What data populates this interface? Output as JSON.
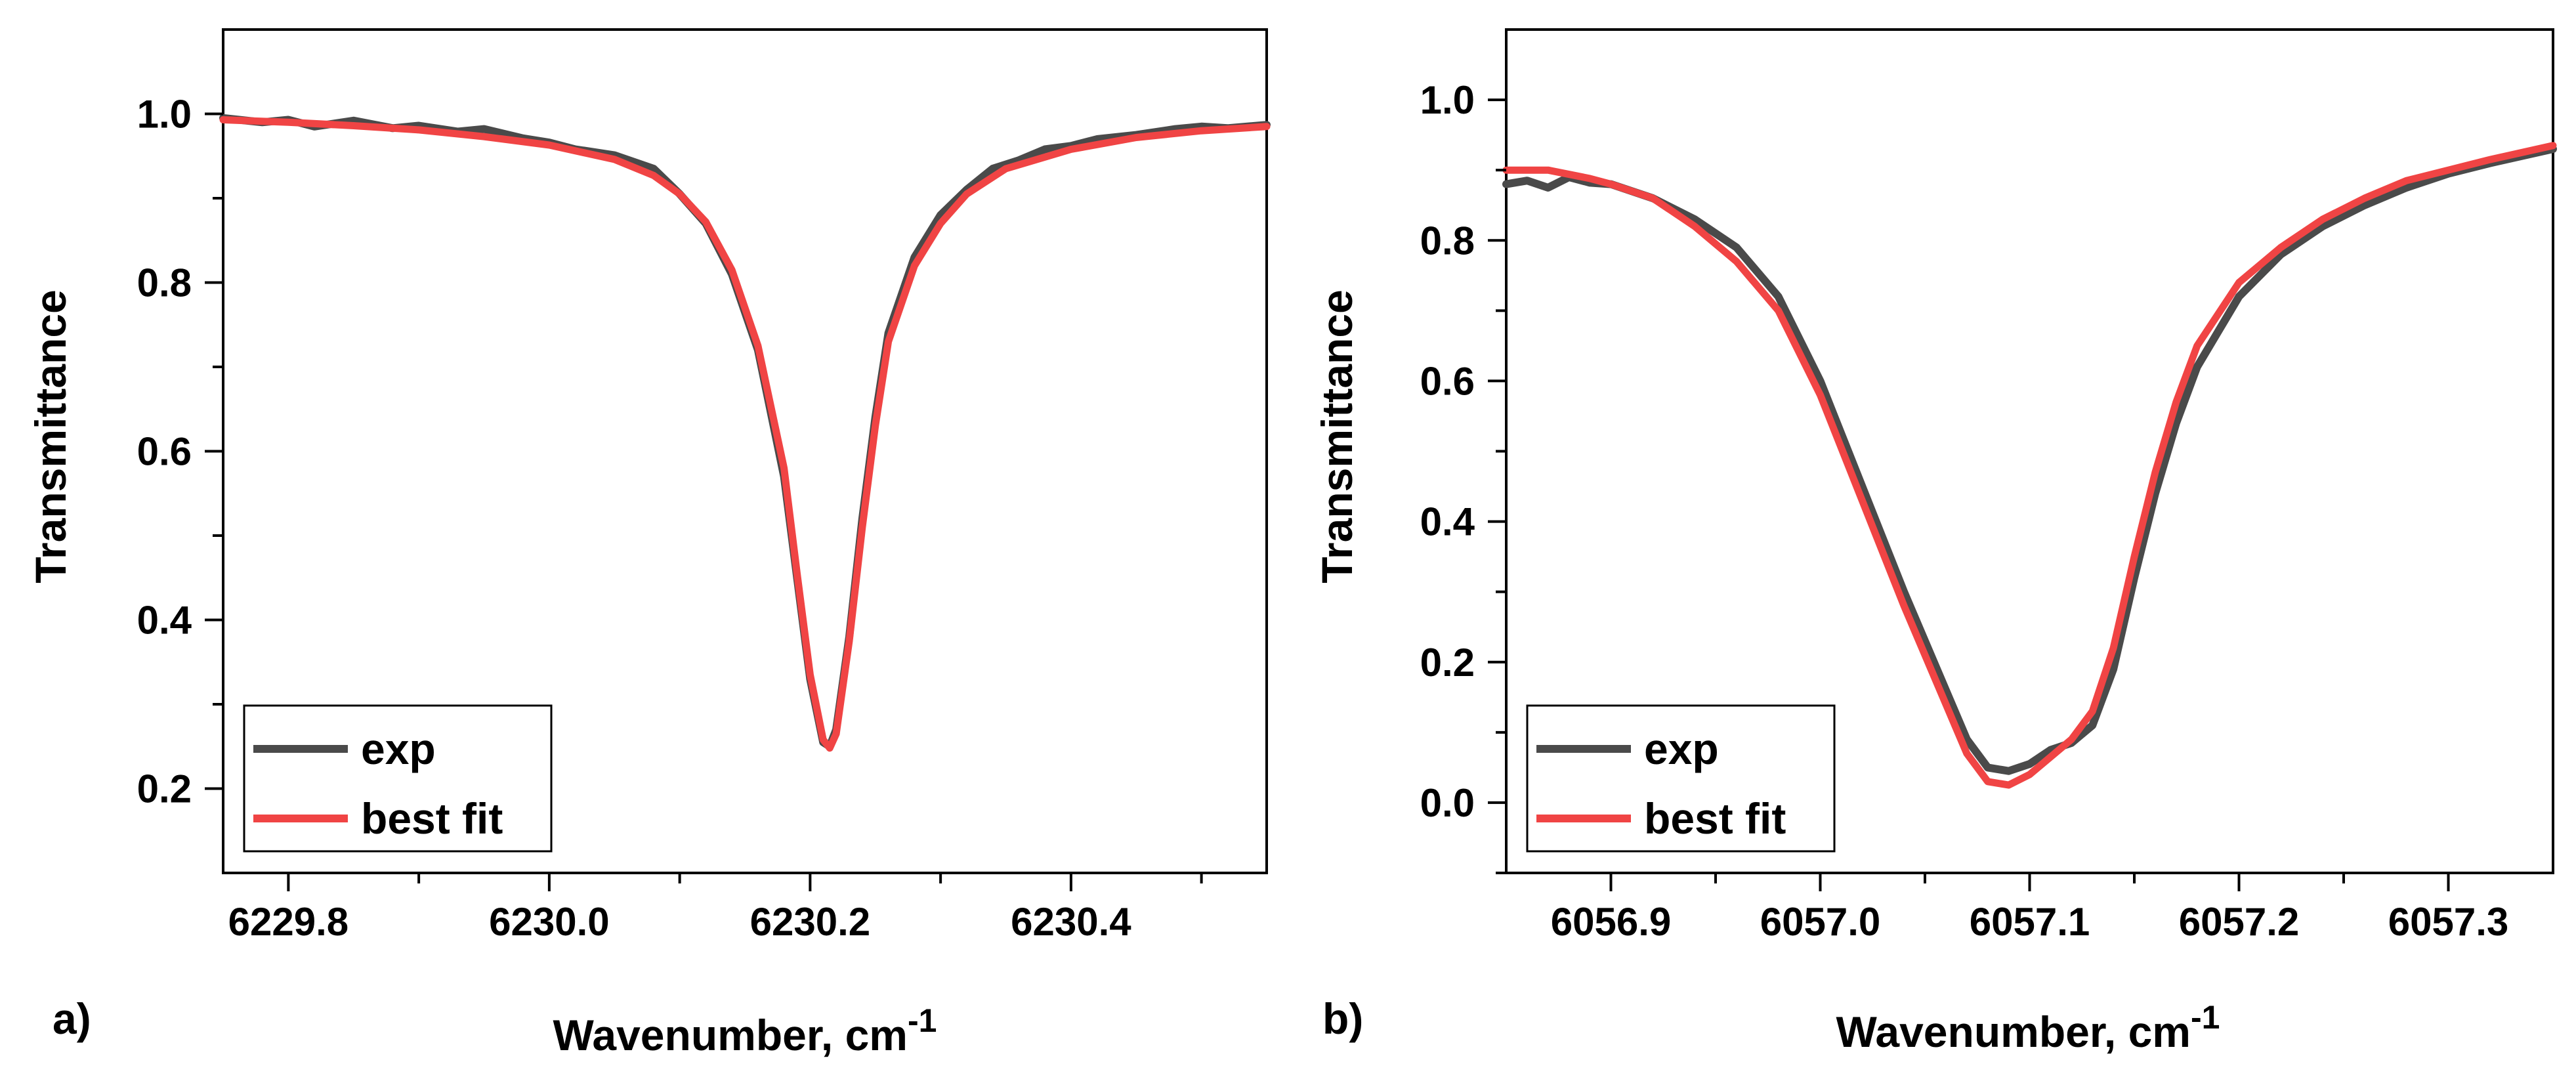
{
  "chart_data": [
    {
      "type": "line",
      "panel_label": "a)",
      "xlabel": "Wavenumber, cm",
      "xlabel_superscript": "-1",
      "ylabel": "Transmittance",
      "xlim": [
        6229.75,
        6230.55
      ],
      "ylim": [
        0.1,
        1.1
      ],
      "x_ticks": [
        6229.8,
        6230.0,
        6230.2,
        6230.4
      ],
      "x_tick_labels": [
        "6229.8",
        "6230.0",
        "6230.2",
        "6230.4"
      ],
      "x_minor_ticks": [
        6229.9,
        6230.1,
        6230.3,
        6230.5
      ],
      "y_ticks": [
        0.2,
        0.4,
        0.6,
        0.8,
        1.0
      ],
      "y_tick_labels": [
        "0.2",
        "0.4",
        "0.6",
        "0.8",
        "1.0"
      ],
      "y_minor_ticks": [
        0.3,
        0.5,
        0.7,
        0.9
      ],
      "legend": {
        "placement": "bottom-left",
        "entries": [
          "exp",
          "best fit"
        ]
      },
      "series": [
        {
          "name": "exp",
          "color": "#4a4a4a",
          "x": [
            6229.75,
            6229.78,
            6229.8,
            6229.82,
            6229.85,
            6229.88,
            6229.9,
            6229.93,
            6229.95,
            6229.98,
            6230.0,
            6230.02,
            6230.05,
            6230.08,
            6230.1,
            6230.12,
            6230.14,
            6230.16,
            6230.18,
            6230.19,
            6230.2,
            6230.21,
            6230.215,
            6230.22,
            6230.23,
            6230.24,
            6230.25,
            6230.26,
            6230.28,
            6230.3,
            6230.32,
            6230.34,
            6230.36,
            6230.38,
            6230.4,
            6230.42,
            6230.45,
            6230.48,
            6230.5,
            6230.52,
            6230.55
          ],
          "y": [
            0.995,
            0.99,
            0.993,
            0.985,
            0.992,
            0.983,
            0.986,
            0.979,
            0.982,
            0.971,
            0.966,
            0.958,
            0.951,
            0.935,
            0.905,
            0.87,
            0.81,
            0.72,
            0.57,
            0.45,
            0.33,
            0.255,
            0.25,
            0.27,
            0.38,
            0.52,
            0.64,
            0.74,
            0.83,
            0.88,
            0.91,
            0.935,
            0.945,
            0.958,
            0.962,
            0.97,
            0.975,
            0.982,
            0.985,
            0.983,
            0.987
          ]
        },
        {
          "name": "best fit",
          "color": "#f04444",
          "x": [
            6229.75,
            6229.8,
            6229.85,
            6229.9,
            6229.95,
            6230.0,
            6230.05,
            6230.08,
            6230.1,
            6230.12,
            6230.14,
            6230.16,
            6230.18,
            6230.19,
            6230.2,
            6230.21,
            6230.215,
            6230.22,
            6230.23,
            6230.24,
            6230.25,
            6230.26,
            6230.28,
            6230.3,
            6230.32,
            6230.35,
            6230.4,
            6230.45,
            6230.5,
            6230.55
          ],
          "y": [
            0.993,
            0.99,
            0.986,
            0.981,
            0.973,
            0.963,
            0.946,
            0.927,
            0.905,
            0.872,
            0.815,
            0.725,
            0.58,
            0.455,
            0.335,
            0.258,
            0.248,
            0.265,
            0.375,
            0.51,
            0.63,
            0.73,
            0.82,
            0.87,
            0.905,
            0.935,
            0.958,
            0.972,
            0.98,
            0.985
          ]
        }
      ]
    },
    {
      "type": "line",
      "panel_label": "b)",
      "xlabel": "Wavenumber, cm",
      "xlabel_superscript": "-1",
      "ylabel": "Transmittance",
      "xlim": [
        6056.85,
        6057.35
      ],
      "ylim": [
        -0.1,
        1.1
      ],
      "x_ticks": [
        6056.9,
        6057.0,
        6057.1,
        6057.2,
        6057.3
      ],
      "x_tick_labels": [
        "6056.9",
        "6057.0",
        "6057.1",
        "6057.2",
        "6057.3"
      ],
      "x_minor_ticks": [
        6056.95,
        6057.05,
        6057.15,
        6057.25
      ],
      "y_ticks": [
        0.0,
        0.2,
        0.4,
        0.6,
        0.8,
        1.0
      ],
      "y_tick_labels": [
        "0.0",
        "0.2",
        "0.4",
        "0.6",
        "0.8",
        "1.0"
      ],
      "y_minor_ticks": [
        -0.1,
        0.1,
        0.3,
        0.5,
        0.7,
        0.9
      ],
      "legend": {
        "placement": "bottom-left",
        "entries": [
          "exp",
          "best fit"
        ]
      },
      "series": [
        {
          "name": "exp",
          "color": "#4a4a4a",
          "x": [
            6056.85,
            6056.86,
            6056.87,
            6056.88,
            6056.89,
            6056.9,
            6056.92,
            6056.94,
            6056.96,
            6056.98,
            6057.0,
            6057.02,
            6057.04,
            6057.06,
            6057.07,
            6057.08,
            6057.09,
            6057.1,
            6057.11,
            6057.12,
            6057.13,
            6057.14,
            6057.15,
            6057.16,
            6057.17,
            6057.18,
            6057.2,
            6057.22,
            6057.24,
            6057.26,
            6057.28,
            6057.3,
            6057.32,
            6057.35
          ],
          "y": [
            0.88,
            0.885,
            0.875,
            0.89,
            0.882,
            0.88,
            0.86,
            0.83,
            0.79,
            0.72,
            0.6,
            0.45,
            0.3,
            0.16,
            0.09,
            0.05,
            0.045,
            0.055,
            0.075,
            0.085,
            0.11,
            0.19,
            0.32,
            0.44,
            0.54,
            0.62,
            0.72,
            0.78,
            0.82,
            0.85,
            0.875,
            0.895,
            0.91,
            0.93
          ]
        },
        {
          "name": "best fit",
          "color": "#f04444",
          "x": [
            6056.85,
            6056.87,
            6056.89,
            6056.9,
            6056.92,
            6056.94,
            6056.96,
            6056.98,
            6057.0,
            6057.02,
            6057.04,
            6057.06,
            6057.07,
            6057.08,
            6057.09,
            6057.1,
            6057.11,
            6057.12,
            6057.13,
            6057.14,
            6057.15,
            6057.16,
            6057.17,
            6057.18,
            6057.2,
            6057.22,
            6057.24,
            6057.26,
            6057.28,
            6057.3,
            6057.32,
            6057.35
          ],
          "y": [
            0.9,
            0.9,
            0.888,
            0.88,
            0.86,
            0.82,
            0.77,
            0.7,
            0.58,
            0.43,
            0.28,
            0.14,
            0.07,
            0.03,
            0.025,
            0.04,
            0.065,
            0.09,
            0.13,
            0.22,
            0.35,
            0.47,
            0.57,
            0.65,
            0.74,
            0.79,
            0.83,
            0.86,
            0.885,
            0.9,
            0.915,
            0.935
          ]
        }
      ]
    }
  ]
}
